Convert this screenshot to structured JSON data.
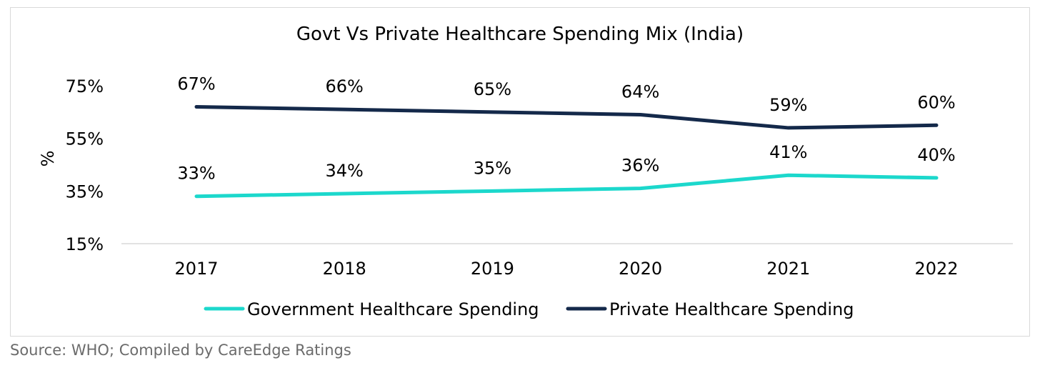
{
  "chart_data": {
    "type": "line",
    "title": "Govt Vs Private Healthcare Spending Mix (India)",
    "xlabel": "",
    "ylabel": "%",
    "x": [
      "2017",
      "2018",
      "2019",
      "2020",
      "2021",
      "2022"
    ],
    "ylim": [
      15,
      75
    ],
    "yticks": [
      15,
      35,
      55,
      75
    ],
    "ytick_labels": [
      "15%",
      "35%",
      "55%",
      "75%"
    ],
    "grid": false,
    "legend_position": "bottom",
    "series": [
      {
        "name": "Government Healthcare Spending",
        "color": "#1cd8cc",
        "values": [
          33,
          34,
          35,
          36,
          41,
          40
        ],
        "labels": [
          "33%",
          "34%",
          "35%",
          "36%",
          "41%",
          "40%"
        ]
      },
      {
        "name": "Private Healthcare Spending",
        "color": "#14294a",
        "values": [
          67,
          66,
          65,
          64,
          59,
          60
        ],
        "labels": [
          "67%",
          "66%",
          "65%",
          "64%",
          "59%",
          "60%"
        ]
      }
    ]
  },
  "source": "Source: WHO; Compiled by CareEdge Ratings"
}
